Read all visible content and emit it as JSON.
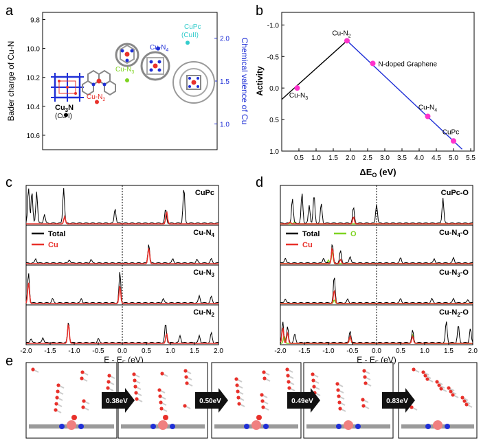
{
  "panel_letters": {
    "a": "a",
    "b": "b",
    "c": "c",
    "d": "d",
    "e": "e"
  },
  "colors": {
    "black": "#000000",
    "red": "#e8302a",
    "blue": "#1f2fd6",
    "green": "#7ed321",
    "cyan": "#33cccc",
    "magenta": "#ff33cc",
    "bline": "#1f2fd6"
  },
  "chart_data": [
    {
      "id": "a",
      "type": "scatter",
      "ylabel_left": "Bader charge of Cu-N",
      "ylabel_right": "Chemical valence of Cu",
      "left_ticks": [
        "9.8",
        "10.0",
        "10.2",
        "10.4",
        "10.6"
      ],
      "right_ticks": [
        "1.0",
        "1.5",
        "2.0"
      ],
      "ylim_left": [
        10.7,
        9.75
      ],
      "ylim_right": [
        0.7,
        2.3
      ],
      "points": [
        {
          "label": "Cu3N",
          "sub": "(Cu I)",
          "bader": 10.46,
          "color": "#000000"
        },
        {
          "label": "Cu-N2",
          "bader": 10.37,
          "color": "#e8302a"
        },
        {
          "label": "Cu-N3",
          "bader": 10.22,
          "color": "#7ed321"
        },
        {
          "label": "Cu-N4",
          "bader": 10.0,
          "color": "#1f2fd6"
        },
        {
          "label": "CuPc",
          "sub": "(CuII)",
          "bader": 9.96,
          "color": "#33cccc"
        }
      ],
      "label_texts": {
        "cu3n": "Cu",
        "cu3n_sub": "3",
        "cu3n_n": "N",
        "cu3n_val": "(Cu I)",
        "cun2": "Cu-N",
        "cun2_sub": "2",
        "cun3": "Cu-N",
        "cun3_sub": "3",
        "cun4": "Cu-N",
        "cun4_sub": "4",
        "cupc": "CuPc",
        "cupc_val": "(CuII)"
      }
    },
    {
      "id": "b",
      "type": "line",
      "xlabel": "ΔE",
      "xlabel_sub": "O",
      "xlabel_unit": " (eV)",
      "ylabel": "Activity",
      "x_ticks": [
        "0.5",
        "1.0",
        "1.5",
        "2.0",
        "2.5",
        "3.0",
        "3.5",
        "4.0",
        "4.5",
        "5.0",
        "5.5"
      ],
      "y_ticks": [
        "-1.0",
        "-0.5",
        "0.0",
        "0.5",
        "1.0"
      ],
      "xlim": [
        0.0,
        5.6
      ],
      "ylim": [
        -1.2,
        1.0
      ],
      "points": [
        {
          "x": 0.45,
          "y": 0.0,
          "label": "Cu-N",
          "sub": "3"
        },
        {
          "x": 1.9,
          "y": -0.75,
          "label": "Cu-N",
          "sub": "2"
        },
        {
          "x": 2.65,
          "y": -0.39,
          "label": "N-doped Graphene",
          "sub": ""
        },
        {
          "x": 4.25,
          "y": 0.45,
          "label": "Cu-N",
          "sub": "4"
        },
        {
          "x": 5.0,
          "y": 0.84,
          "label": "CuPc",
          "sub": ""
        }
      ],
      "lines": [
        {
          "color": "#000000",
          "x": [
            0.0,
            1.9
          ],
          "y": [
            0.18,
            -0.75
          ]
        },
        {
          "color": "#1f2fd6",
          "x": [
            1.9,
            5.25
          ],
          "y": [
            -0.75,
            0.97
          ]
        }
      ]
    },
    {
      "id": "c",
      "type": "line",
      "xlabel": "E - E",
      "xlabel_sub": "F",
      "xlabel_unit": " (eV)",
      "x_ticks": [
        "-2.0",
        "-1.5",
        "-1.0",
        "-0.5",
        "0.0",
        "0.5",
        "1.0",
        "1.5",
        "2.0"
      ],
      "xlim": [
        -2.0,
        2.0
      ],
      "legend": [
        "Total",
        "Cu"
      ],
      "subpanels": [
        {
          "name": "CuPc",
          "sub": "",
          "peaks_total": [
            [
              -1.95,
              1.0
            ],
            [
              -1.88,
              0.9
            ],
            [
              -1.78,
              0.9
            ],
            [
              -1.62,
              0.25
            ],
            [
              -1.22,
              1.0
            ],
            [
              -0.15,
              0.42
            ],
            [
              0.9,
              0.4
            ],
            [
              1.28,
              1.0
            ]
          ],
          "peaks_cu": [
            [
              -1.2,
              0.2
            ],
            [
              0.92,
              0.35
            ]
          ]
        },
        {
          "name": "Cu-N",
          "sub": "4",
          "peaks_total": [
            [
              -1.8,
              0.12
            ],
            [
              -1.1,
              0.1
            ],
            [
              -0.65,
              0.1
            ],
            [
              0.55,
              0.55
            ],
            [
              1.05,
              0.12
            ],
            [
              1.55,
              0.1
            ],
            [
              1.85,
              0.12
            ]
          ],
          "peaks_cu": [
            [
              0.55,
              0.45
            ]
          ]
        },
        {
          "name": "Cu-N",
          "sub": "3",
          "peaks_total": [
            [
              -1.95,
              0.85
            ],
            [
              -1.45,
              0.12
            ],
            [
              -0.85,
              0.12
            ],
            [
              -0.05,
              0.88
            ],
            [
              0.85,
              0.12
            ],
            [
              1.6,
              0.2
            ],
            [
              1.85,
              0.18
            ]
          ],
          "peaks_cu": [
            [
              -1.95,
              0.6
            ],
            [
              -0.05,
              0.5
            ]
          ]
        },
        {
          "name": "Cu-N",
          "sub": "2",
          "peaks_total": [
            [
              -1.9,
              0.12
            ],
            [
              -1.65,
              0.15
            ],
            [
              -1.12,
              0.6
            ],
            [
              -0.5,
              0.12
            ],
            [
              0.9,
              0.55
            ],
            [
              1.2,
              0.2
            ],
            [
              1.6,
              0.2
            ],
            [
              1.85,
              0.28
            ]
          ],
          "peaks_cu": [
            [
              -1.12,
              0.55
            ],
            [
              0.92,
              0.28
            ]
          ]
        }
      ]
    },
    {
      "id": "d",
      "type": "line",
      "xlabel": "E - E",
      "xlabel_sub": "F",
      "xlabel_unit": " (eV)",
      "x_ticks": [
        "-2.0",
        "-1.5",
        "-1.0",
        "-0.5",
        "0.0",
        "0.5",
        "1.0",
        "1.5",
        "2.0"
      ],
      "xlim": [
        -2.0,
        2.0
      ],
      "legend": [
        "Total",
        "Cu",
        "O"
      ],
      "subpanels": [
        {
          "name": "CuPc-O",
          "sub": "",
          "peaks_total": [
            [
              -1.75,
              0.7
            ],
            [
              -1.55,
              0.85
            ],
            [
              -1.4,
              0.5
            ],
            [
              -1.3,
              0.8
            ],
            [
              -1.15,
              0.55
            ],
            [
              -0.48,
              0.45
            ],
            [
              0.0,
              0.55
            ],
            [
              1.38,
              0.72
            ]
          ],
          "peaks_cu": [
            [
              -1.8,
              0.05
            ],
            [
              -0.48,
              0.2
            ]
          ],
          "peaks_o": [
            [
              -1.7,
              0.05
            ]
          ]
        },
        {
          "name": "Cu-N",
          "sub": "4",
          "suffix": "-O",
          "peaks_total": [
            [
              -1.9,
              0.15
            ],
            [
              -1.1,
              0.15
            ],
            [
              -0.92,
              0.55
            ],
            [
              -0.75,
              0.35
            ],
            [
              -0.55,
              0.2
            ],
            [
              0.5,
              0.15
            ],
            [
              1.2,
              0.12
            ],
            [
              1.6,
              0.15
            ]
          ],
          "peaks_cu": [
            [
              -0.92,
              0.45
            ],
            [
              -0.75,
              0.12
            ]
          ],
          "peaks_o": [
            [
              -0.92,
              0.35
            ],
            [
              -1.0,
              0.1
            ]
          ]
        },
        {
          "name": "Cu-N",
          "sub": "3",
          "suffix": "-O",
          "peaks_total": [
            [
              -1.9,
              0.12
            ],
            [
              -0.88,
              0.75
            ],
            [
              -0.6,
              0.1
            ],
            [
              0.5,
              0.12
            ],
            [
              1.15,
              0.12
            ],
            [
              1.6,
              0.12
            ],
            [
              1.9,
              0.1
            ]
          ],
          "peaks_cu": [
            [
              -0.88,
              0.38
            ]
          ],
          "peaks_o": [
            [
              -0.88,
              0.1
            ]
          ]
        },
        {
          "name": "Cu-N",
          "sub": "2",
          "suffix": "-O",
          "peaks_total": [
            [
              -1.95,
              0.6
            ],
            [
              -1.85,
              0.45
            ],
            [
              -1.7,
              0.25
            ],
            [
              -0.55,
              0.35
            ],
            [
              0.75,
              0.35
            ],
            [
              1.45,
              0.6
            ],
            [
              1.7,
              0.5
            ],
            [
              1.95,
              0.4
            ]
          ],
          "peaks_cu": [
            [
              -1.95,
              0.45
            ],
            [
              -1.85,
              0.3
            ],
            [
              -0.55,
              0.2
            ],
            [
              0.75,
              0.2
            ]
          ],
          "peaks_o": [
            [
              -1.92,
              0.22
            ],
            [
              -0.55,
              0.18
            ],
            [
              0.75,
              0.25
            ]
          ]
        }
      ]
    },
    {
      "id": "e",
      "type": "diagram",
      "steps": [
        "0.38eV",
        "0.50eV",
        "0.49eV",
        "0.83eV"
      ]
    }
  ]
}
